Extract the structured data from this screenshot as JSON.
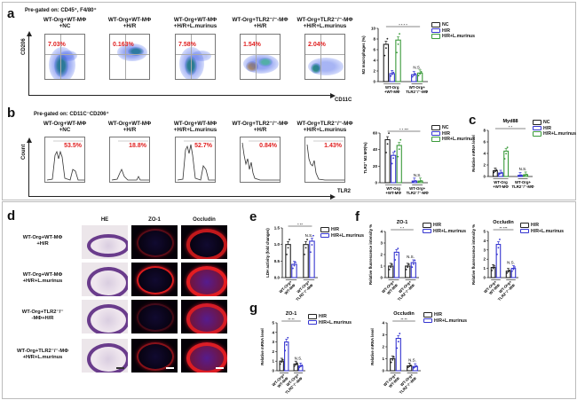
{
  "panels": {
    "a": {
      "label": "a",
      "pregate": "Pre-gated on: CD45⁺, F4/80⁺",
      "y_axis": "CD206",
      "x_axis": "CD11C",
      "plots": [
        {
          "title": [
            "WT-Org+WT-MΦ",
            "+NC"
          ],
          "percent": "7.03%"
        },
        {
          "title": [
            "WT-Org+WT-MΦ",
            "+H/R"
          ],
          "percent": "0.163%"
        },
        {
          "title": [
            "WT-Org+WT-MΦ",
            "+H/R+L.murinus"
          ],
          "percent": "7.58%"
        },
        {
          "title": [
            "WT-Org+TLR2⁻/⁻-MΦ",
            "+H/R"
          ],
          "percent": "1.54%"
        },
        {
          "title": [
            "WT-Org+TLR2⁻/⁻-MΦ",
            "+H/R+L.murinus"
          ],
          "percent": "2.04%"
        }
      ]
    },
    "b": {
      "label": "b",
      "pregate": "Pre-gated on: CD11C⁻CD206⁺",
      "y_axis": "Count",
      "x_axis": "TLR2",
      "plots": [
        {
          "title": [
            "WT-Org+WT-MΦ",
            "+NC"
          ],
          "percent": "53.5%"
        },
        {
          "title": [
            "WT-Org+WT-MΦ",
            "+H/R"
          ],
          "percent": "18.8%"
        },
        {
          "title": [
            "WT-Org+WT-MΦ",
            "+H/R+L.murinus"
          ],
          "percent": "52.7%"
        },
        {
          "title": [
            "WT-Org+TLR2⁻/⁻-MΦ",
            "+H/R"
          ],
          "percent": "0.84%"
        },
        {
          "title": [
            "WT-Org+TLR2⁻/⁻-MΦ",
            "+H/R+L.murinus"
          ],
          "percent": "1.43%"
        }
      ]
    },
    "c": {
      "label": "c"
    },
    "d": {
      "label": "d",
      "columns": [
        "HE",
        "ZO-1",
        "Occludin"
      ],
      "rows": [
        [
          "WT-Org+WT-MΦ",
          "+H/R"
        ],
        [
          "WT-Org+WT-MΦ",
          "+H/R+L.murinus"
        ],
        [
          "WT-Org+TLR2⁻/⁻",
          "-MΦ+H/R"
        ],
        [
          "WT-Org+TLR2⁻/⁻-MΦ",
          "+H/R+L.murinus"
        ]
      ]
    },
    "e": {
      "label": "e"
    },
    "f": {
      "label": "f"
    },
    "g": {
      "label": "g"
    }
  },
  "colors": {
    "NC": "#222222",
    "HR": "#3535d0",
    "HRL": "#3a9a3a",
    "gate_percent": "#e02020"
  },
  "chart_data": [
    {
      "id": "a",
      "type": "bar",
      "title": "",
      "ylabel": "M2 macrophages (%)",
      "ylim": [
        0,
        10
      ],
      "yticks": [
        "0",
        "2",
        "4",
        "6",
        "8",
        "10"
      ],
      "groups": [
        [
          "WT-Org",
          "+WT-MΦ"
        ],
        [
          "WT-Org+",
          "TLR2⁻/⁻-MΦ"
        ]
      ],
      "series": [
        {
          "name": "NC",
          "color": "#222222",
          "values": [
            7.0,
            null
          ]
        },
        {
          "name": "H/R",
          "color": "#3535d0",
          "values": [
            1.5,
            1.3
          ]
        },
        {
          "name": "H/R+L.murinus",
          "color": "#3a9a3a",
          "values": [
            7.8,
            1.6
          ]
        }
      ],
      "sig_top": "*   *   *   *",
      "sig_group2": "N.S."
    },
    {
      "id": "b",
      "type": "bar",
      "title": "",
      "ylabel": "TLR2⁺ M2 MΦ(%)",
      "ylim": [
        0,
        60
      ],
      "yticks": [
        "0",
        "20",
        "40",
        "60"
      ],
      "groups": [
        [
          "WT-Org",
          "+WT-MΦ"
        ],
        [
          "WT-Org+",
          "TLR2⁻/⁻-MΦ"
        ]
      ],
      "series": [
        {
          "name": "NC",
          "color": "#222222",
          "values": [
            52,
            null
          ]
        },
        {
          "name": "H/R",
          "color": "#3535d0",
          "values": [
            33,
            2
          ]
        },
        {
          "name": "H/R+L.murinus",
          "color": "#3a9a3a",
          "values": [
            45,
            2
          ]
        }
      ],
      "sig_top": "*   *   ***",
      "sig_group2": "N.S."
    },
    {
      "id": "c",
      "type": "bar",
      "title": "Myd88",
      "ylabel": "Relative mRNA level",
      "ylim": [
        0,
        8
      ],
      "yticks": [
        "0",
        "2",
        "4",
        "6",
        "8"
      ],
      "groups": [
        [
          "WT-Org",
          "+WT-MΦ"
        ],
        [
          "WT-Org+",
          "TLR2⁻/⁻-MΦ"
        ]
      ],
      "series": [
        {
          "name": "NC",
          "color": "#222222",
          "values": [
            1.0,
            null
          ]
        },
        {
          "name": "H/R",
          "color": "#3535d0",
          "values": [
            0.6,
            0.2
          ]
        },
        {
          "name": "H/R+L.murinus",
          "color": "#3a9a3a",
          "values": [
            4.4,
            0.3
          ]
        }
      ],
      "sig_top": "*      *",
      "sig_group2": "N.S."
    },
    {
      "id": "e",
      "type": "bar",
      "title": "",
      "ylabel": "LDH activity (fold changes)",
      "ylim": [
        0,
        1.5
      ],
      "yticks": [
        "0.0",
        "0.5",
        "1.0",
        "1.5"
      ],
      "groups": [
        [
          "WT-Org+",
          "WT-MΦ"
        ],
        [
          "WT-Org+",
          "TLR2⁻/⁻-MΦ"
        ]
      ],
      "rotated_labels": true,
      "series": [
        {
          "name": "H/R",
          "color": "#222222",
          "values": [
            1.0,
            1.0
          ]
        },
        {
          "name": "H/R+L.murinus",
          "color": "#3535d0",
          "values": [
            0.4,
            1.1
          ]
        }
      ],
      "sig_top": "*   **",
      "sig_group2": "N.S."
    },
    {
      "id": "f1",
      "type": "bar",
      "title": "ZO-1",
      "ylabel": "Relative fluorescence intensity %",
      "ylim": [
        0,
        4
      ],
      "yticks": [
        "0",
        "1",
        "2",
        "3",
        "4"
      ],
      "groups": [
        [
          "WT-Org+",
          "WT-MΦ"
        ],
        [
          "WT-Org+",
          "TLR2⁻/⁻-MΦ"
        ]
      ],
      "rotated_labels": true,
      "series": [
        {
          "name": "H/R",
          "color": "#222222",
          "values": [
            1.0,
            1.0
          ]
        },
        {
          "name": "H/R+L.murinus",
          "color": "#3535d0",
          "values": [
            2.2,
            1.3
          ]
        }
      ],
      "sig_top": "*      *",
      "sig_group2": "N.S."
    },
    {
      "id": "f2",
      "type": "bar",
      "title": "Occludin",
      "ylabel": "Relative fluorescence intensity %",
      "ylim": [
        0,
        5
      ],
      "yticks": [
        "0",
        "1",
        "2",
        "3",
        "4",
        "5"
      ],
      "groups": [
        [
          "WT-Org+",
          "WT-MΦ"
        ],
        [
          "WT-Org+",
          "TLR2⁻/⁻-MΦ"
        ]
      ],
      "rotated_labels": true,
      "series": [
        {
          "name": "H/R",
          "color": "#222222",
          "values": [
            1.1,
            0.7
          ]
        },
        {
          "name": "H/R+L.murinus",
          "color": "#3535d0",
          "values": [
            3.6,
            1.0
          ]
        }
      ],
      "sig_top": "**   ***",
      "sig_group2": "N.S."
    },
    {
      "id": "g1",
      "type": "bar",
      "title": "ZO-1",
      "ylabel": "Relative mRNA level",
      "ylim": [
        0,
        5
      ],
      "yticks": [
        "0",
        "1",
        "2",
        "3",
        "4",
        "5"
      ],
      "groups": [
        [
          "WT-Org+",
          "WT-MΦ"
        ],
        [
          "WT-Org+",
          "TLR2⁻/⁻-MΦ"
        ]
      ],
      "rotated_labels": true,
      "series": [
        {
          "name": "H/R",
          "color": "#222222",
          "values": [
            1.0,
            0.7
          ]
        },
        {
          "name": "H/R+L.murinus",
          "color": "#3535d0",
          "values": [
            3.0,
            0.5
          ]
        }
      ],
      "sig_top": "**   **",
      "sig_group2": "N.S."
    },
    {
      "id": "g2",
      "type": "bar",
      "title": "Occludin",
      "ylabel": "Relative mRNA level",
      "ylim": [
        0,
        4
      ],
      "yticks": [
        "0",
        "1",
        "2",
        "3",
        "4"
      ],
      "groups": [
        [
          "WT-Org+",
          "WT-MΦ"
        ],
        [
          "WT-Org+",
          "TLR2⁻/⁻-MΦ"
        ]
      ],
      "rotated_labels": true,
      "series": [
        {
          "name": "H/R",
          "color": "#222222",
          "values": [
            1.0,
            0.4
          ]
        },
        {
          "name": "H/R+L.murinus",
          "color": "#3535d0",
          "values": [
            2.7,
            0.35
          ]
        }
      ],
      "sig_top": "**   **",
      "sig_group2": "N.S."
    }
  ]
}
